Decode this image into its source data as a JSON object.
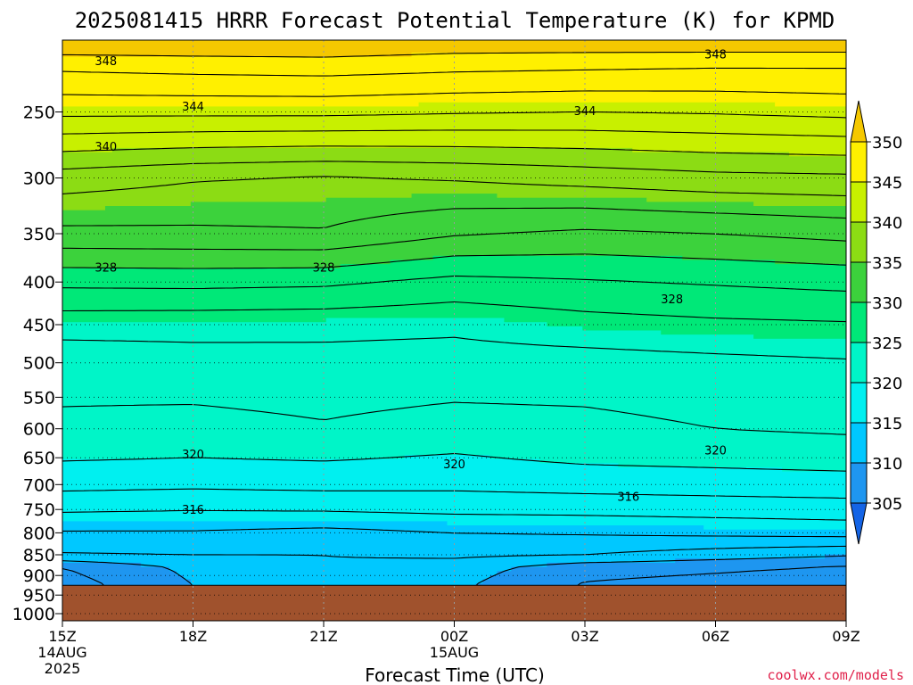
{
  "chart_data": {
    "type": "heatmap",
    "title": "2025081415 HRRR Forecast Potential Temperature (K) for KPMD",
    "xlabel": "Forecast Time (UTC)",
    "ylabel": "",
    "credit": "coolwx.com/models",
    "x_ticks": [
      {
        "hour": 0,
        "label": "15Z",
        "date": "14AUG",
        "year": "2025"
      },
      {
        "hour": 3,
        "label": "18Z",
        "date": "",
        "year": ""
      },
      {
        "hour": 6,
        "label": "21Z",
        "date": "",
        "year": ""
      },
      {
        "hour": 9,
        "label": "00Z",
        "date": "15AUG",
        "year": ""
      },
      {
        "hour": 12,
        "label": "03Z",
        "date": "",
        "year": ""
      },
      {
        "hour": 15,
        "label": "06Z",
        "date": "",
        "year": ""
      },
      {
        "hour": 18,
        "label": "09Z",
        "date": "",
        "year": ""
      }
    ],
    "xlim": [
      0,
      18
    ],
    "y_axis_label_values": [
      250,
      300,
      350,
      400,
      450,
      500,
      550,
      600,
      650,
      700,
      750,
      800,
      850,
      900,
      950,
      1000
    ],
    "ylim_hpa": [
      205,
      1020
    ],
    "ground_level_hpa": 925,
    "ground_color": "#a0522d",
    "colorbar": {
      "labels": [
        305,
        310,
        315,
        320,
        325,
        330,
        335,
        340,
        345,
        350
      ],
      "extend": "both",
      "colors": [
        "#1464e6",
        "#1e96f0",
        "#00c8ff",
        "#00f0f0",
        "#00f5c8",
        "#00e878",
        "#3cd23c",
        "#8cdc14",
        "#c8f000",
        "#fff000",
        "#f5c800"
      ]
    },
    "contour_interval_k": 2,
    "fill_interval_k": 5,
    "contour_labels": [
      {
        "value": "348",
        "hour": 1.0,
        "hpa": 217
      },
      {
        "value": "348",
        "hour": 15.0,
        "hpa": 213
      },
      {
        "value": "344",
        "hour": 3.0,
        "hpa": 246
      },
      {
        "value": "344",
        "hour": 12.0,
        "hpa": 249
      },
      {
        "value": "340",
        "hour": 1.0,
        "hpa": 275
      },
      {
        "value": "328",
        "hour": 1.0,
        "hpa": 384
      },
      {
        "value": "328",
        "hour": 6.0,
        "hpa": 384
      },
      {
        "value": "328",
        "hour": 14.0,
        "hpa": 419
      },
      {
        "value": "320",
        "hour": 3.0,
        "hpa": 643
      },
      {
        "value": "320",
        "hour": 9.0,
        "hpa": 661
      },
      {
        "value": "320",
        "hour": 15.0,
        "hpa": 636
      },
      {
        "value": "316",
        "hour": 3.0,
        "hpa": 750
      },
      {
        "value": "316",
        "hour": 13.0,
        "hpa": 723
      }
    ],
    "theta_columns": [
      {
        "hour": 0,
        "profile": [
          [
            205,
            352
          ],
          [
            220,
            348.5
          ],
          [
            250,
            344.5
          ],
          [
            300,
            337
          ],
          [
            350,
            333.5
          ],
          [
            400,
            328.5
          ],
          [
            450,
            324.8
          ],
          [
            500,
            322.8
          ],
          [
            600,
            321.6
          ],
          [
            650,
            320.2
          ],
          [
            700,
            318.6
          ],
          [
            750,
            316.3
          ],
          [
            800,
            313.8
          ],
          [
            850,
            311.8
          ],
          [
            880,
            308
          ],
          [
            925,
            307
          ]
        ]
      },
      {
        "hour": 3,
        "profile": [
          [
            205,
            352
          ],
          [
            220,
            348.8
          ],
          [
            250,
            344.5
          ],
          [
            300,
            336.2
          ],
          [
            350,
            333.6
          ],
          [
            400,
            328.6
          ],
          [
            450,
            324.7
          ],
          [
            500,
            323.2
          ],
          [
            600,
            321.3
          ],
          [
            650,
            320
          ],
          [
            700,
            318.4
          ],
          [
            750,
            316.1
          ],
          [
            800,
            313.8
          ],
          [
            850,
            312
          ],
          [
            880,
            310.5
          ],
          [
            925,
            310
          ]
        ]
      },
      {
        "hour": 6,
        "profile": [
          [
            205,
            352
          ],
          [
            220,
            349
          ],
          [
            250,
            344.5
          ],
          [
            300,
            335.8
          ],
          [
            350,
            333.8
          ],
          [
            400,
            328.4
          ],
          [
            450,
            324.6
          ],
          [
            500,
            323.3
          ],
          [
            600,
            321.8
          ],
          [
            650,
            320.2
          ],
          [
            700,
            318.6
          ],
          [
            750,
            316.2
          ],
          [
            800,
            313.4
          ],
          [
            850,
            312
          ],
          [
            880,
            311.8
          ],
          [
            925,
            311.6
          ]
        ]
      },
      {
        "hour": 9,
        "profile": [
          [
            205,
            351.5
          ],
          [
            220,
            348.6
          ],
          [
            250,
            344.2
          ],
          [
            300,
            336.2
          ],
          [
            350,
            332.2
          ],
          [
            400,
            327.4
          ],
          [
            450,
            324.4
          ],
          [
            500,
            323.2
          ],
          [
            600,
            321.2
          ],
          [
            650,
            319.8
          ],
          [
            700,
            318.5
          ],
          [
            750,
            316.5
          ],
          [
            800,
            314
          ],
          [
            850,
            312.4
          ],
          [
            880,
            311
          ],
          [
            925,
            310.4
          ]
        ]
      },
      {
        "hour": 12,
        "profile": [
          [
            205,
            351.5
          ],
          [
            220,
            348.4
          ],
          [
            250,
            344
          ],
          [
            300,
            336.8
          ],
          [
            350,
            331.6
          ],
          [
            400,
            327.8
          ],
          [
            450,
            325.2
          ],
          [
            500,
            323.2
          ],
          [
            600,
            321.4
          ],
          [
            650,
            320.4
          ],
          [
            700,
            318.8
          ],
          [
            750,
            316.6
          ],
          [
            800,
            314.2
          ],
          [
            850,
            312
          ],
          [
            880,
            308.8
          ],
          [
            925,
            307.8
          ]
        ]
      },
      {
        "hour": 15,
        "profile": [
          [
            205,
            351.6
          ],
          [
            220,
            348.2
          ],
          [
            250,
            344.2
          ],
          [
            300,
            337.4
          ],
          [
            350,
            332
          ],
          [
            400,
            328.2
          ],
          [
            450,
            325.6
          ],
          [
            500,
            323.5
          ],
          [
            600,
            322
          ],
          [
            650,
            320.6
          ],
          [
            700,
            319
          ],
          [
            750,
            316.8
          ],
          [
            800,
            314.5
          ],
          [
            850,
            311
          ],
          [
            880,
            308.4
          ],
          [
            925,
            307.2
          ]
        ]
      },
      {
        "hour": 18,
        "profile": [
          [
            205,
            351.6
          ],
          [
            220,
            348.2
          ],
          [
            250,
            344.6
          ],
          [
            300,
            337.6
          ],
          [
            350,
            332.6
          ],
          [
            400,
            328.6
          ],
          [
            450,
            325.8
          ],
          [
            500,
            323.8
          ],
          [
            600,
            322.3
          ],
          [
            650,
            320.8
          ],
          [
            700,
            319.2
          ],
          [
            750,
            317
          ],
          [
            800,
            314.8
          ],
          [
            850,
            310.2
          ],
          [
            880,
            307.8
          ],
          [
            925,
            306.8
          ]
        ]
      }
    ]
  }
}
